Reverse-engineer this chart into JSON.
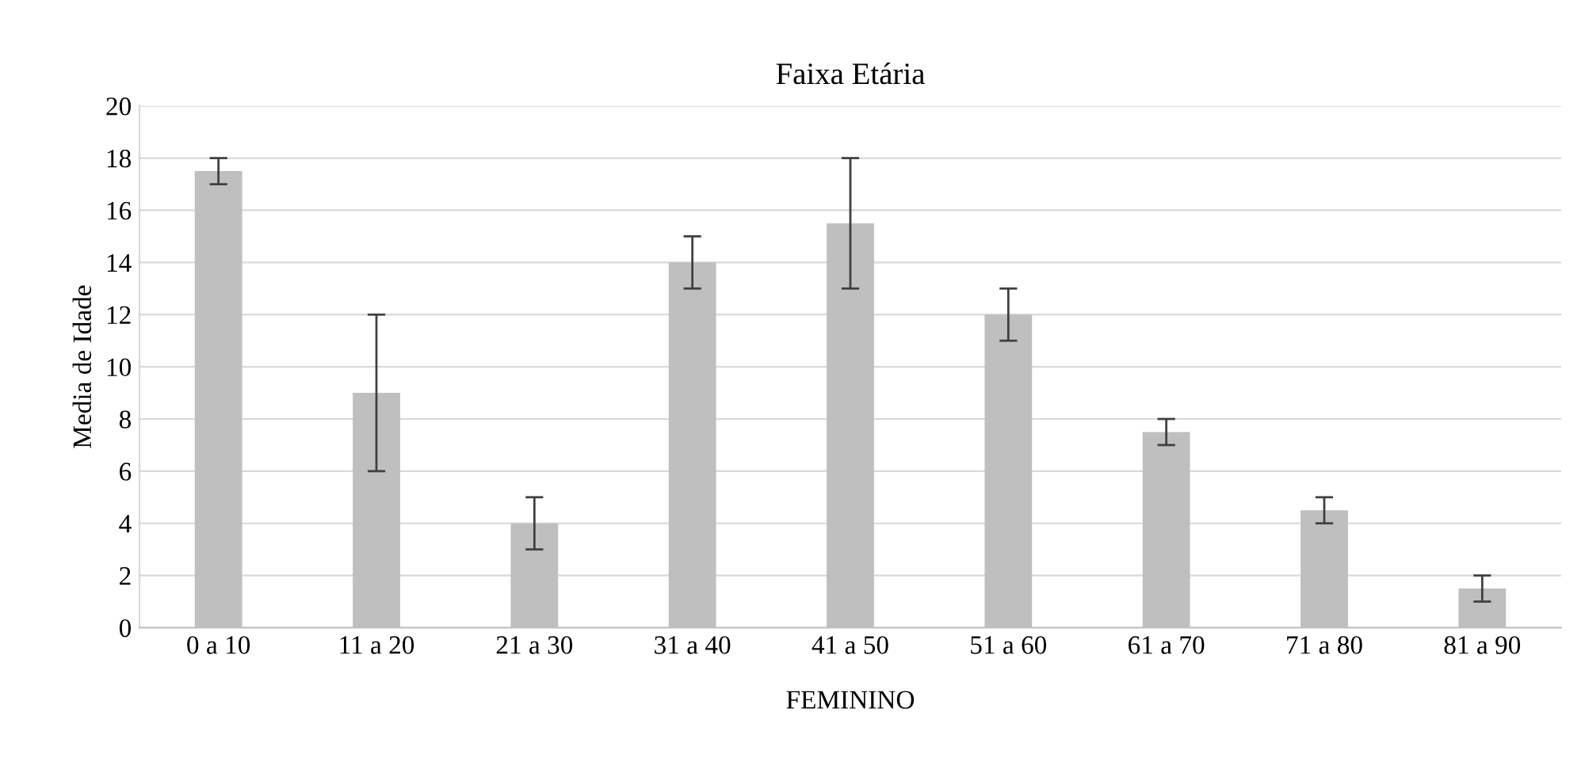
{
  "chart_data": {
    "type": "bar",
    "title": "Faixa Etária",
    "xlabel": "FEMININO",
    "ylabel": "Media de Idade",
    "categories": [
      "0 a 10",
      "11 a 20",
      "21 a 30",
      "31 a 40",
      "41 a 50",
      "51 a 60",
      "61 a 70",
      "71 a 80",
      "81 a 90"
    ],
    "values": [
      17.5,
      9,
      4,
      14,
      15.5,
      12,
      7.5,
      4.5,
      1.5
    ],
    "errors": [
      0.5,
      3,
      1,
      1,
      2.5,
      1,
      0.5,
      0.5,
      0.5
    ],
    "color": "#bfbfbf",
    "ylim": [
      0,
      20
    ],
    "yticks": [
      0,
      2,
      4,
      6,
      8,
      10,
      12,
      14,
      16,
      18,
      20
    ],
    "grid": "y",
    "legend": false
  }
}
